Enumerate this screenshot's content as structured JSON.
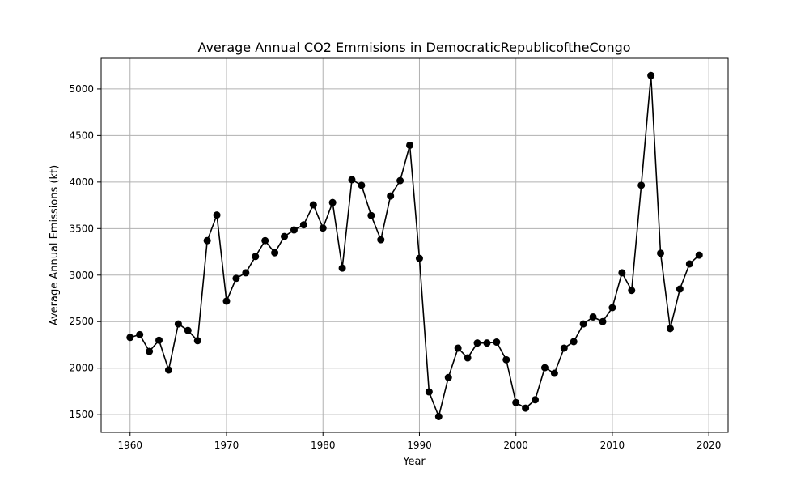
{
  "chart_data": {
    "type": "line",
    "title": "Average Annual CO2 Emmisions in DemocraticRepublicoftheCongo",
    "xlabel": "Year",
    "ylabel": "Average Annual Emissions (kt)",
    "xlim": [
      1957,
      2022
    ],
    "ylim": [
      1310,
      5330
    ],
    "xticks": [
      1960,
      1970,
      1980,
      1990,
      2000,
      2010,
      2020
    ],
    "yticks": [
      1500,
      2000,
      2500,
      3000,
      3500,
      4000,
      4500,
      5000
    ],
    "grid": true,
    "line_color": "#000000",
    "marker": "circle",
    "x": [
      1960,
      1961,
      1962,
      1963,
      1964,
      1965,
      1966,
      1967,
      1968,
      1969,
      1970,
      1971,
      1972,
      1973,
      1974,
      1975,
      1976,
      1977,
      1978,
      1979,
      1980,
      1981,
      1982,
      1983,
      1984,
      1985,
      1986,
      1987,
      1988,
      1989,
      1990,
      1991,
      1992,
      1993,
      1994,
      1995,
      1996,
      1997,
      1998,
      1999,
      2000,
      2001,
      2002,
      2003,
      2004,
      2005,
      2006,
      2007,
      2008,
      2009,
      2010,
      2011,
      2012,
      2013,
      2014,
      2015,
      2016,
      2017,
      2018,
      2019
    ],
    "y": [
      2330,
      2360,
      2180,
      2300,
      1980,
      2475,
      2405,
      2295,
      3370,
      3645,
      2720,
      2965,
      3025,
      3200,
      3370,
      3240,
      3415,
      3485,
      3540,
      3755,
      3505,
      3780,
      3075,
      4025,
      3965,
      3640,
      3380,
      3850,
      4015,
      4395,
      3180,
      1745,
      1480,
      1900,
      2215,
      2110,
      2270,
      2270,
      2280,
      2090,
      1630,
      1570,
      1660,
      2005,
      1945,
      2215,
      2285,
      2475,
      2550,
      2500,
      2650,
      3025,
      2835,
      3965,
      5145,
      3235,
      2425,
      2850,
      3120,
      3215
    ]
  }
}
